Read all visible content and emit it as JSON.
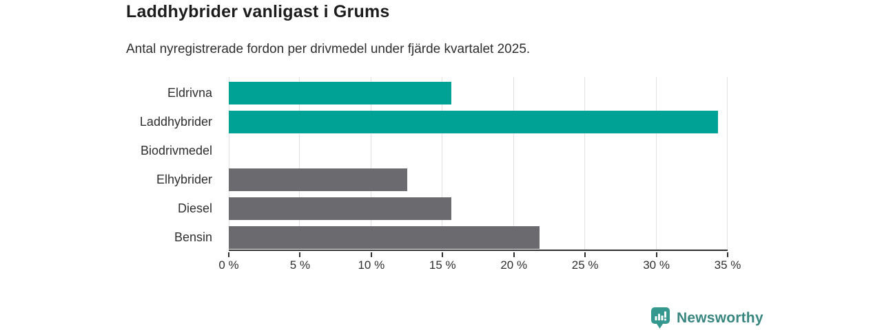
{
  "chart_data": {
    "type": "bar",
    "orientation": "horizontal",
    "title": "Laddhybrider vanligast i Grums",
    "subtitle": "Antal nyregistrerade fordon per drivmedel under fjärde kvartalet 2025.",
    "categories": [
      "Eldrivna",
      "Laddhybrider",
      "Biodrivmedel",
      "Elhybrider",
      "Diesel",
      "Bensin"
    ],
    "values": [
      15.6,
      34.3,
      0,
      12.5,
      15.6,
      21.8
    ],
    "unit": "%",
    "bar_colors": [
      "#00a296",
      "#00a296",
      "#6a6a6f",
      "#6a6a6f",
      "#6a6a6f",
      "#6a6a6f"
    ],
    "highlight_color": "#00a296",
    "default_color": "#6a6a6f",
    "xlim": [
      0,
      35
    ],
    "x_ticks": [
      "0 %",
      "5 %",
      "10 %",
      "15 %",
      "20 %",
      "25 %",
      "30 %",
      "35 %"
    ],
    "x_tick_values": [
      0,
      5,
      10,
      15,
      20,
      25,
      30,
      35
    ],
    "grid": true,
    "gridline_color": "#e1e1e1",
    "axis_color": "#2d2d2d",
    "legend": "none"
  },
  "footer": {
    "brand": "Newsworthy",
    "brand_color": "#38867f",
    "logo_icon": "bar-chart-speech-bubble-icon",
    "logo_icon_color": "#35988f"
  }
}
